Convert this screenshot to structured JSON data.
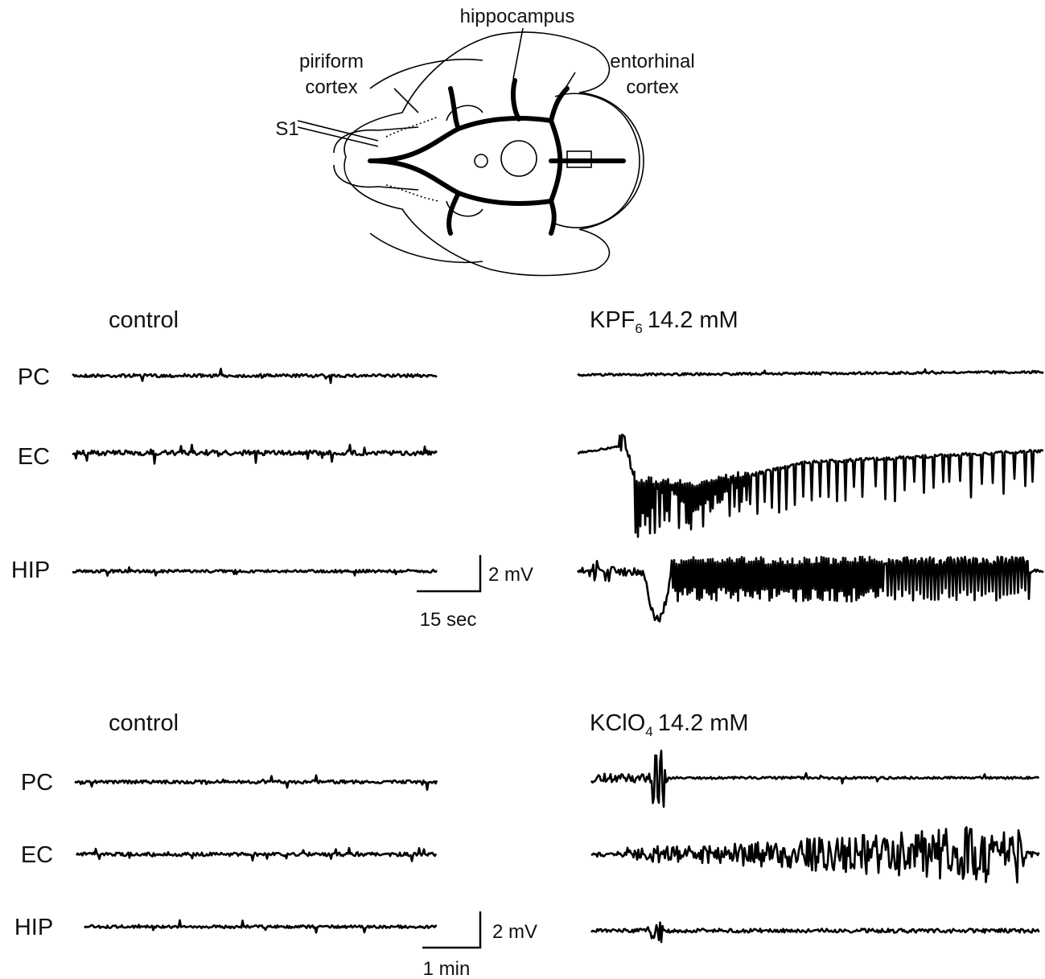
{
  "figure": {
    "diagram": {
      "hippocampus": "hippocampus",
      "piriform": [
        "piriform",
        "cortex"
      ],
      "entorhinal": [
        "entorhinal",
        "cortex"
      ],
      "stimulus": "S1"
    },
    "panel_a": {
      "left_title": "control",
      "right_title": {
        "main": "KPF",
        "sub": "6",
        "rest": "14.2 mM"
      },
      "channels": [
        "PC",
        "EC",
        "HIP"
      ],
      "scale_v": "2 mV",
      "scale_t": "15 sec"
    },
    "panel_b": {
      "left_title": "control",
      "right_title": {
        "main": "KClO",
        "sub": "4",
        "rest": "14.2 mM"
      },
      "channels": [
        "PC",
        "EC",
        "HIP"
      ],
      "scale_v": "2 mV",
      "scale_t": "1 min"
    }
  }
}
